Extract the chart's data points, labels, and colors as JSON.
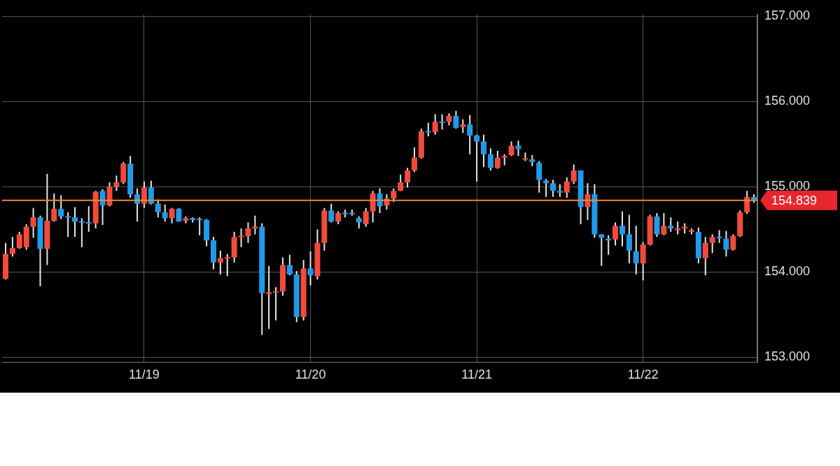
{
  "chart_data": {
    "type": "candlestick",
    "categories": [
      null,
      null,
      null,
      null,
      null,
      null,
      null,
      null,
      null,
      null,
      null,
      null,
      null,
      null,
      null,
      null,
      null,
      null,
      null,
      null,
      "11/19",
      null,
      null,
      null,
      null,
      null,
      null,
      null,
      null,
      null,
      null,
      null,
      null,
      null,
      null,
      null,
      null,
      null,
      null,
      null,
      null,
      null,
      null,
      null,
      "11/20",
      null,
      null,
      null,
      null,
      null,
      null,
      null,
      null,
      null,
      null,
      null,
      null,
      null,
      null,
      null,
      null,
      null,
      null,
      null,
      null,
      null,
      null,
      null,
      "11/21",
      null,
      null,
      null,
      null,
      null,
      null,
      null,
      null,
      null,
      null,
      null,
      null,
      null,
      null,
      null,
      null,
      null,
      null,
      null,
      null,
      null,
      null,
      null,
      "11/22",
      null,
      null,
      null,
      null,
      null,
      null,
      null,
      null,
      null,
      null,
      null,
      null,
      null,
      null,
      null,
      null
    ],
    "ohlc": [
      [
        153.92,
        154.34,
        153.91,
        154.21
      ],
      [
        154.21,
        154.41,
        154.18,
        154.28
      ],
      [
        154.28,
        154.47,
        154.27,
        154.44
      ],
      [
        154.29,
        154.56,
        154.26,
        154.53
      ],
      [
        154.53,
        154.75,
        154.4,
        154.64
      ],
      [
        154.64,
        154.66,
        153.83,
        154.27
      ],
      [
        154.27,
        155.15,
        154.08,
        154.6
      ],
      [
        154.6,
        154.92,
        154.59,
        154.74
      ],
      [
        154.74,
        154.9,
        154.62,
        154.65
      ],
      [
        154.65,
        154.7,
        154.41,
        154.64
      ],
      [
        154.64,
        154.76,
        154.41,
        154.59
      ],
      [
        154.59,
        154.63,
        154.29,
        154.58
      ],
      [
        154.58,
        154.77,
        154.47,
        154.57
      ],
      [
        154.57,
        154.95,
        154.51,
        154.94
      ],
      [
        154.95,
        154.97,
        154.55,
        154.78
      ],
      [
        154.78,
        155.05,
        154.77,
        155.0
      ],
      [
        155.0,
        155.13,
        154.95,
        155.05
      ],
      [
        155.05,
        155.29,
        155.03,
        155.27
      ],
      [
        155.27,
        155.36,
        154.87,
        154.91
      ],
      [
        154.91,
        154.98,
        154.59,
        154.8
      ],
      [
        154.8,
        155.06,
        154.75,
        154.99
      ],
      [
        154.99,
        155.07,
        154.79,
        154.8
      ],
      [
        154.8,
        154.85,
        154.64,
        154.7
      ],
      [
        154.7,
        154.79,
        154.59,
        154.63
      ],
      [
        154.63,
        154.75,
        154.57,
        154.74
      ],
      [
        154.74,
        154.75,
        154.59,
        154.59
      ],
      [
        154.6,
        154.65,
        154.57,
        154.63
      ],
      [
        154.63,
        154.64,
        154.58,
        154.61
      ],
      [
        154.62,
        154.64,
        154.43,
        154.61
      ],
      [
        154.61,
        154.62,
        154.3,
        154.37
      ],
      [
        154.37,
        154.41,
        154.03,
        154.11
      ],
      [
        154.11,
        154.25,
        153.97,
        154.16
      ],
      [
        154.16,
        154.21,
        153.95,
        154.17
      ],
      [
        154.17,
        154.47,
        154.11,
        154.41
      ],
      [
        154.41,
        154.51,
        154.29,
        154.42
      ],
      [
        154.42,
        154.58,
        154.34,
        154.51
      ],
      [
        154.51,
        154.66,
        154.44,
        154.53
      ],
      [
        154.53,
        154.57,
        153.26,
        153.75
      ],
      [
        153.74,
        154.07,
        153.33,
        153.76
      ],
      [
        153.76,
        153.82,
        153.43,
        153.77
      ],
      [
        153.77,
        154.17,
        153.72,
        154.08
      ],
      [
        154.08,
        154.2,
        153.96,
        153.97
      ],
      [
        153.97,
        154.01,
        153.41,
        153.47
      ],
      [
        153.47,
        154.14,
        153.43,
        154.04
      ],
      [
        154.04,
        154.24,
        153.84,
        153.96
      ],
      [
        153.95,
        154.5,
        153.91,
        154.34
      ],
      [
        154.34,
        154.75,
        154.25,
        154.72
      ],
      [
        154.72,
        154.8,
        154.58,
        154.59
      ],
      [
        154.59,
        154.71,
        154.56,
        154.69
      ],
      [
        154.69,
        154.73,
        154.64,
        154.68
      ],
      [
        154.69,
        154.73,
        154.66,
        154.68
      ],
      [
        154.63,
        154.65,
        154.51,
        154.58
      ],
      [
        154.56,
        154.75,
        154.53,
        154.71
      ],
      [
        154.71,
        154.95,
        154.58,
        154.92
      ],
      [
        154.92,
        154.98,
        154.69,
        154.77
      ],
      [
        154.78,
        154.91,
        154.73,
        154.86
      ],
      [
        154.86,
        154.98,
        154.82,
        154.95
      ],
      [
        154.95,
        155.14,
        154.95,
        155.05
      ],
      [
        155.05,
        155.22,
        154.99,
        155.19
      ],
      [
        155.19,
        155.46,
        155.17,
        155.34
      ],
      [
        155.34,
        155.68,
        155.33,
        155.65
      ],
      [
        155.65,
        155.75,
        155.59,
        155.64
      ],
      [
        155.64,
        155.85,
        155.61,
        155.76
      ],
      [
        155.76,
        155.85,
        155.67,
        155.75
      ],
      [
        155.76,
        155.86,
        155.72,
        155.83
      ],
      [
        155.83,
        155.89,
        155.68,
        155.69
      ],
      [
        155.7,
        155.79,
        155.63,
        155.73
      ],
      [
        155.73,
        155.84,
        155.38,
        155.6
      ],
      [
        155.6,
        155.61,
        155.06,
        155.53
      ],
      [
        155.53,
        155.61,
        155.23,
        155.38
      ],
      [
        155.38,
        155.45,
        155.19,
        155.22
      ],
      [
        155.22,
        155.42,
        155.21,
        155.34
      ],
      [
        155.34,
        155.38,
        155.25,
        155.36
      ],
      [
        155.37,
        155.53,
        155.36,
        155.48
      ],
      [
        155.48,
        155.54,
        155.36,
        155.44
      ],
      [
        155.32,
        155.4,
        155.3,
        155.33
      ],
      [
        155.32,
        155.37,
        155.24,
        155.29
      ],
      [
        155.28,
        155.3,
        154.93,
        155.08
      ],
      [
        155.07,
        155.09,
        154.88,
        155.04
      ],
      [
        155.04,
        155.08,
        154.88,
        154.95
      ],
      [
        154.95,
        155.03,
        154.88,
        154.93
      ],
      [
        154.93,
        155.11,
        154.87,
        155.06
      ],
      [
        155.06,
        155.26,
        155.03,
        155.19
      ],
      [
        155.19,
        155.19,
        154.56,
        154.76
      ],
      [
        154.76,
        155.04,
        154.61,
        154.91
      ],
      [
        154.91,
        155.03,
        154.4,
        154.44
      ],
      [
        154.44,
        154.44,
        154.07,
        154.4
      ],
      [
        154.39,
        154.43,
        154.2,
        154.37
      ],
      [
        154.38,
        154.58,
        154.31,
        154.54
      ],
      [
        154.54,
        154.71,
        154.3,
        154.44
      ],
      [
        154.44,
        154.67,
        154.1,
        154.25
      ],
      [
        154.24,
        154.54,
        153.97,
        154.1
      ],
      [
        154.1,
        154.35,
        153.9,
        154.32
      ],
      [
        154.32,
        154.67,
        154.31,
        154.65
      ],
      [
        154.65,
        154.69,
        154.41,
        154.44
      ],
      [
        154.44,
        154.69,
        154.43,
        154.54
      ],
      [
        154.54,
        154.64,
        154.47,
        154.51
      ],
      [
        154.49,
        154.59,
        154.44,
        154.51
      ],
      [
        154.51,
        154.57,
        154.45,
        154.53
      ],
      [
        154.47,
        154.51,
        154.44,
        154.49
      ],
      [
        154.47,
        154.52,
        154.1,
        154.16
      ],
      [
        154.16,
        154.41,
        153.96,
        154.34
      ],
      [
        154.34,
        154.44,
        154.22,
        154.41
      ],
      [
        154.41,
        154.49,
        154.34,
        154.4
      ],
      [
        154.39,
        154.48,
        154.18,
        154.26
      ],
      [
        154.26,
        154.44,
        154.25,
        154.42
      ],
      [
        154.42,
        154.72,
        154.41,
        154.7
      ],
      [
        154.7,
        154.95,
        154.68,
        154.88
      ],
      [
        154.88,
        154.91,
        154.81,
        154.84
      ]
    ],
    "colors": [
      "#f44a3a",
      "#f44a3a",
      "#f44a3a",
      "#f44a3a",
      "#f44a3a",
      "#1e9be9",
      "#f44a3a",
      "#f44a3a",
      "#1e9be9",
      "#1e9be9",
      "#1e9be9",
      "#1e9be9",
      "#1e9be9",
      "#f44a3a",
      "#1e9be9",
      "#f44a3a",
      "#f44a3a",
      "#f44a3a",
      "#1e9be9",
      "#1e9be9",
      "#f44a3a",
      "#1e9be9",
      "#1e9be9",
      "#1e9be9",
      "#f44a3a",
      "#1e9be9",
      "#f44a3a",
      "#1e9be9",
      "#1e9be9",
      "#1e9be9",
      "#1e9be9",
      "#f44a3a",
      "#f44a3a",
      "#f44a3a",
      "#f44a3a",
      "#f44a3a",
      "#f44a3a",
      "#1e9be9",
      "#f44a3a",
      "#f44a3a",
      "#f44a3a",
      "#1e9be9",
      "#1e9be9",
      "#f44a3a",
      "#1e9be9",
      "#f44a3a",
      "#f44a3a",
      "#1e9be9",
      "#f44a3a",
      "#1e9be9",
      "#1e9be9",
      "#1e9be9",
      "#f44a3a",
      "#f44a3a",
      "#1e9be9",
      "#f44a3a",
      "#f44a3a",
      "#f44a3a",
      "#f44a3a",
      "#f44a3a",
      "#f44a3a",
      "#1e9be9",
      "#f44a3a",
      "#1e9be9",
      "#f44a3a",
      "#1e9be9",
      "#f44a3a",
      "#1e9be9",
      "#1e9be9",
      "#1e9be9",
      "#1e9be9",
      "#f44a3a",
      "#f44a3a",
      "#f44a3a",
      "#1e9be9",
      "#f44a3a",
      "#1e9be9",
      "#1e9be9",
      "#1e9be9",
      "#1e9be9",
      "#1e9be9",
      "#f44a3a",
      "#f44a3a",
      "#1e9be9",
      "#f44a3a",
      "#1e9be9",
      "#1e9be9",
      "#1e9be9",
      "#f44a3a",
      "#1e9be9",
      "#1e9be9",
      "#1e9be9",
      "#f44a3a",
      "#f44a3a",
      "#1e9be9",
      "#f44a3a",
      "#1e9be9",
      "#f44a3a",
      "#f44a3a",
      "#f44a3a",
      "#1e9be9",
      "#f44a3a",
      "#f44a3a",
      "#1e9be9",
      "#1e9be9",
      "#f44a3a",
      "#f44a3a",
      "#f44a3a",
      "#1e9be9"
    ],
    "ylim": [
      152.94,
      157.02
    ],
    "yticks": [
      {
        "value": 153,
        "label": "153.000"
      },
      {
        "value": 154,
        "label": "154.000"
      },
      {
        "value": 155,
        "label": "155.000"
      },
      {
        "value": 156,
        "label": "156.000"
      },
      {
        "value": 157,
        "label": "157.000"
      }
    ],
    "grid": true,
    "ref_lines": [
      {
        "axis": "y",
        "value": 154.839,
        "label": "154.839",
        "color": "#f08a30"
      }
    ]
  }
}
